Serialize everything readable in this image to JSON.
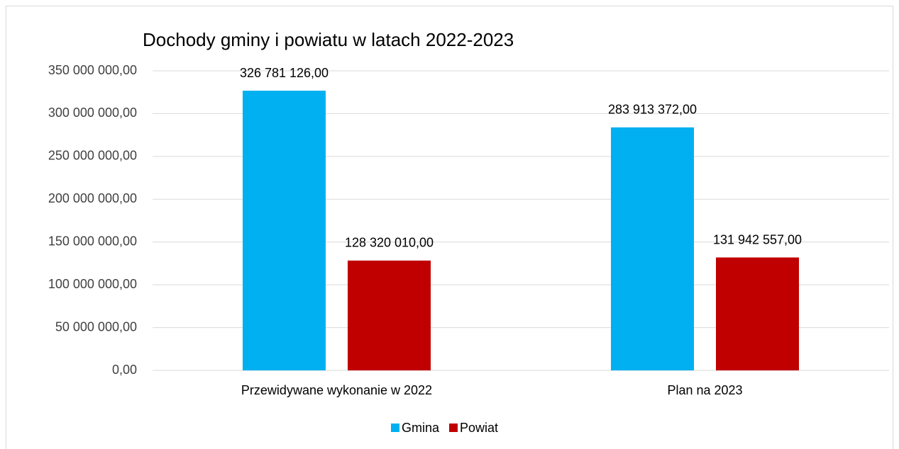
{
  "chart_data": {
    "type": "bar",
    "title": "Dochody gminy i powiatu w latach 2022-2023",
    "categories": [
      "Przewidywane wykonanie w 2022",
      "Plan na 2023"
    ],
    "series": [
      {
        "name": "Gmina",
        "color": "#00b0f0",
        "values": [
          326781126,
          283913372
        ],
        "value_labels": [
          "326 781 126,00",
          "283 913 372,00"
        ]
      },
      {
        "name": "Powiat",
        "color": "#c00000",
        "values": [
          128320010,
          131942557
        ],
        "value_labels": [
          "128 320 010,00",
          "131 942 557,00"
        ]
      }
    ],
    "ylim": [
      0,
      350000000
    ],
    "yticks": [
      {
        "value": 0,
        "label": "0,00"
      },
      {
        "value": 50000000,
        "label": "50 000 000,00"
      },
      {
        "value": 100000000,
        "label": "100 000 000,00"
      },
      {
        "value": 150000000,
        "label": "150 000 000,00"
      },
      {
        "value": 200000000,
        "label": "200 000 000,00"
      },
      {
        "value": 250000000,
        "label": "250 000 000,00"
      },
      {
        "value": 300000000,
        "label": "300 000 000,00"
      },
      {
        "value": 350000000,
        "label": "350 000 000,00"
      }
    ],
    "grid": true,
    "legend": "bottom"
  }
}
